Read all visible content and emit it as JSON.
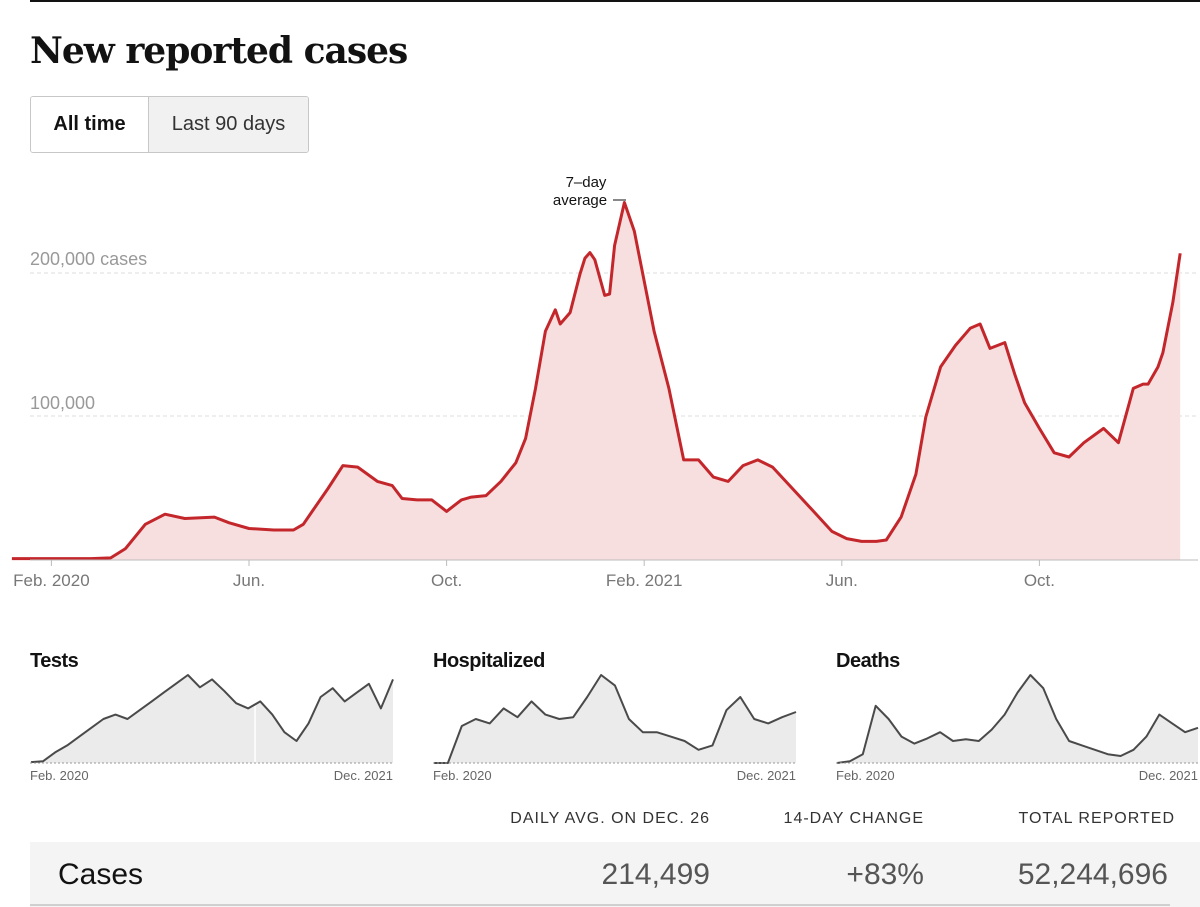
{
  "page": {
    "title": "New reported cases",
    "toggle": {
      "all_time": "All time",
      "last_90_days": "Last 90 days",
      "selected": "All time"
    }
  },
  "colors": {
    "line": "#c3272b",
    "fill": "#f7dfdf",
    "small_line": "#4a4a4a",
    "small_fill": "#ebebeb",
    "grid": "#dcdcdc"
  },
  "chart_data": [
    {
      "type": "area",
      "title": "New reported cases",
      "annotation": "7-day average",
      "y_tick_labels": [
        "200,000 cases",
        "100,000"
      ],
      "y_ticks": [
        200000,
        100000
      ],
      "ylim": [
        0,
        240000
      ],
      "xlim": [
        0,
        23.85
      ],
      "x_unit": "months since Jan. 2020",
      "x_tick_labels": [
        "Feb. 2020",
        "Jun.",
        "Oct.",
        "Feb. 2021",
        "Jun.",
        "Oct."
      ],
      "x_ticks": [
        1,
        5,
        9,
        13,
        17,
        21
      ],
      "x": [
        0.2,
        1.0,
        1.8,
        2.2,
        2.5,
        2.9,
        3.3,
        3.7,
        4.3,
        4.6,
        5.0,
        5.5,
        5.9,
        6.1,
        6.3,
        6.6,
        6.9,
        7.2,
        7.6,
        7.9,
        8.1,
        8.4,
        8.7,
        9.0,
        9.3,
        9.5,
        9.8,
        10.1,
        10.4,
        10.6,
        10.8,
        11.0,
        11.2,
        11.3,
        11.5,
        11.7,
        11.8,
        11.9,
        12.0,
        12.2,
        12.3,
        12.4,
        12.6,
        12.8,
        13.2,
        13.5,
        13.8,
        14.1,
        14.4,
        14.7,
        15.0,
        15.3,
        15.6,
        16.0,
        16.4,
        16.8,
        17.1,
        17.4,
        17.7,
        17.9,
        18.2,
        18.5,
        18.7,
        19.0,
        19.3,
        19.6,
        19.8,
        20.0,
        20.3,
        20.5,
        20.7,
        21.0,
        21.3,
        21.6,
        21.9,
        22.3,
        22.6,
        22.9,
        23.1,
        23.2,
        23.4,
        23.5,
        23.7,
        23.85
      ],
      "values": [
        1000,
        1000,
        1000,
        1500,
        8000,
        25000,
        32000,
        29000,
        30000,
        26000,
        22000,
        21000,
        21000,
        25000,
        35000,
        50000,
        66000,
        65000,
        55000,
        52000,
        43000,
        42000,
        42000,
        34000,
        42000,
        44000,
        45000,
        55000,
        68000,
        85000,
        120000,
        160000,
        175000,
        165000,
        173000,
        200000,
        211000,
        215000,
        210000,
        185000,
        186000,
        220000,
        250000,
        230000,
        160000,
        120000,
        70000,
        70000,
        58000,
        55000,
        66000,
        70000,
        65000,
        50000,
        35000,
        20000,
        15000,
        13000,
        13000,
        14000,
        30000,
        60000,
        100000,
        135000,
        150000,
        162000,
        165000,
        148000,
        152000,
        130000,
        110000,
        92000,
        75000,
        72000,
        82000,
        92000,
        82000,
        120000,
        123000,
        123000,
        135000,
        145000,
        180000,
        214499
      ]
    },
    {
      "type": "area",
      "title": "Tests",
      "x_tick_labels": [
        "Feb. 2020",
        "Dec. 2021"
      ],
      "values": [
        0.01,
        0.02,
        0.12,
        0.2,
        0.3,
        0.4,
        0.5,
        0.55,
        0.5,
        0.6,
        0.7,
        0.8,
        0.9,
        1.0,
        0.86,
        0.95,
        0.82,
        0.68,
        0.62,
        0.7,
        0.55,
        0.35,
        0.25,
        0.45,
        0.75,
        0.85,
        0.7,
        0.8,
        0.9,
        0.62,
        0.95
      ]
    },
    {
      "type": "area",
      "title": "Hospitalized",
      "x_tick_labels": [
        "Feb. 2020",
        "Dec. 2021"
      ],
      "values": [
        0.0,
        0.0,
        0.42,
        0.5,
        0.45,
        0.62,
        0.52,
        0.7,
        0.55,
        0.5,
        0.52,
        0.75,
        1.0,
        0.88,
        0.5,
        0.35,
        0.35,
        0.3,
        0.25,
        0.15,
        0.2,
        0.6,
        0.75,
        0.5,
        0.45,
        0.52,
        0.58
      ]
    },
    {
      "type": "area",
      "title": "Deaths",
      "x_tick_labels": [
        "Feb. 2020",
        "Dec. 2021"
      ],
      "values": [
        0.0,
        0.02,
        0.1,
        0.65,
        0.5,
        0.3,
        0.22,
        0.28,
        0.35,
        0.25,
        0.27,
        0.25,
        0.38,
        0.55,
        0.8,
        1.0,
        0.85,
        0.5,
        0.25,
        0.2,
        0.15,
        0.1,
        0.08,
        0.15,
        0.3,
        0.55,
        0.45,
        0.35,
        0.4
      ]
    }
  ],
  "stats": {
    "headers": {
      "daily_avg": "DAILY AVG. ON DEC. 26",
      "change": "14-DAY CHANGE",
      "total": "TOTAL REPORTED"
    },
    "cases": {
      "label": "Cases",
      "daily_avg": "214,499",
      "change": "+83%",
      "total": "52,244,696"
    }
  }
}
